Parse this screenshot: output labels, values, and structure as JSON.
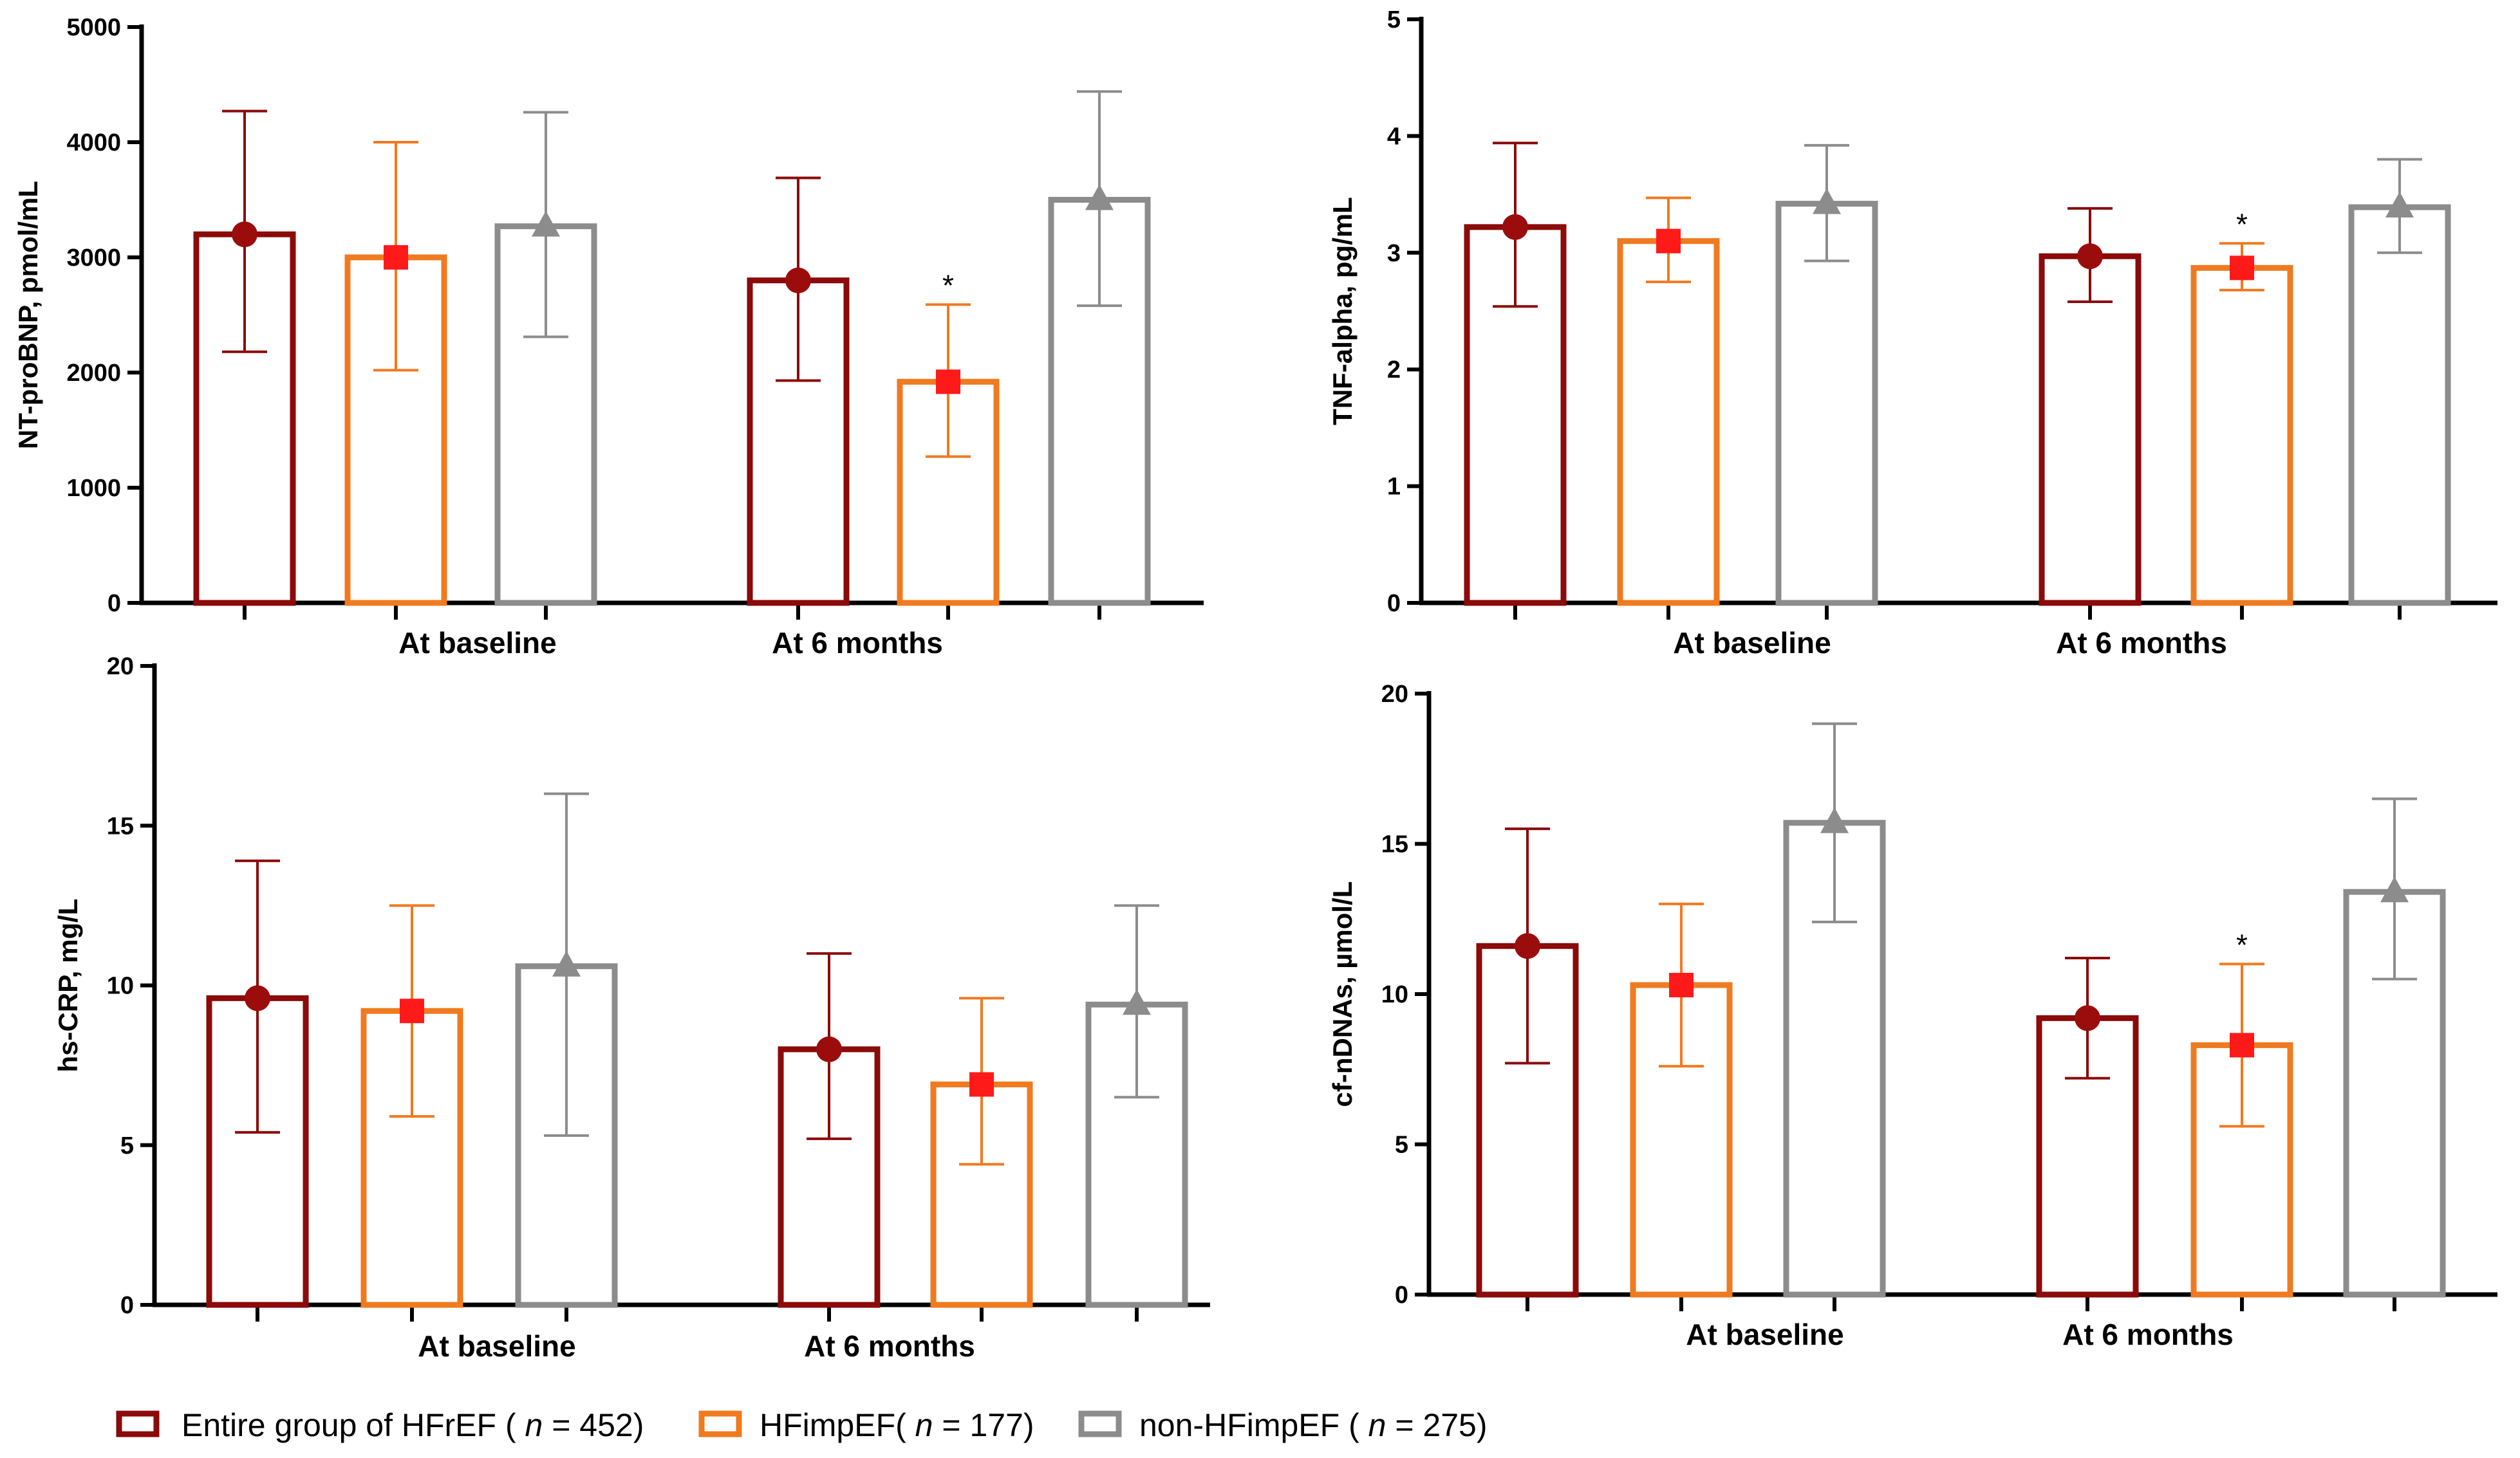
{
  "legend": [
    {
      "key": "entire",
      "prefix": "Entire group of HFrEF ( ",
      "n_label": "n",
      "suffix": " = 452)",
      "color": "#8b0a0a",
      "marker": "circle",
      "marker_color": "#9b0d0d"
    },
    {
      "key": "imp",
      "prefix": "HFimpEF( ",
      "n_label": "n",
      "suffix": " = 177)",
      "color": "#f07a20",
      "marker": "square",
      "marker_color": "#ff1a1a"
    },
    {
      "key": "non",
      "prefix": "non-HFimpEF ( ",
      "n_label": "n",
      "suffix": " = 275)",
      "color": "#8c8c8c",
      "marker": "triangle",
      "marker_color": "#8c8c8c"
    }
  ],
  "chart_data": [
    {
      "type": "bar",
      "ylabel": "NT-proBNP, pmol/mL",
      "ylim": [
        0,
        5000
      ],
      "yticks": [
        0,
        1000,
        2000,
        3000,
        4000,
        5000
      ],
      "categories": [
        "At baseline",
        "At 6 months"
      ],
      "series": [
        {
          "name": "Entire group of HFrEF ( n = 452)",
          "values": [
            3200,
            2800
          ],
          "err_low": [
            2180,
            1930
          ],
          "err_high": [
            4270,
            3690
          ]
        },
        {
          "name": "HFimpEF( n = 177)",
          "values": [
            3000,
            1920
          ],
          "err_low": [
            2020,
            1270
          ],
          "err_high": [
            4000,
            2590
          ]
        },
        {
          "name": "non-HFimpEF ( n = 275)",
          "values": [
            3270,
            3500
          ],
          "err_low": [
            2310,
            2580
          ],
          "err_high": [
            4260,
            4440
          ]
        }
      ],
      "annotations": [
        {
          "text": "*",
          "category": "At 6 months",
          "series": "HFimpEF( n = 177)"
        }
      ]
    },
    {
      "type": "bar",
      "ylabel": "TNF-alpha, pg/mL",
      "ylim": [
        0,
        5
      ],
      "yticks": [
        0,
        1,
        2,
        3,
        4,
        5
      ],
      "categories": [
        "At baseline",
        "At 6 months"
      ],
      "series": [
        {
          "name": "Entire group of HFrEF ( n = 452)",
          "values": [
            3.22,
            2.97
          ],
          "err_low": [
            2.54,
            2.58
          ],
          "err_high": [
            3.94,
            3.38
          ]
        },
        {
          "name": "HFimpEF( n = 177)",
          "values": [
            3.1,
            2.87
          ],
          "err_low": [
            2.75,
            2.68
          ],
          "err_high": [
            3.47,
            3.08
          ]
        },
        {
          "name": "non-HFimpEF ( n = 275)",
          "values": [
            3.42,
            3.39
          ],
          "err_low": [
            2.93,
            3.0
          ],
          "err_high": [
            3.92,
            3.8
          ]
        }
      ],
      "annotations": [
        {
          "text": "*",
          "category": "At 6 months",
          "series": "HFimpEF( n = 177)"
        }
      ]
    },
    {
      "type": "bar",
      "ylabel": "hs-CRP, mg/L",
      "ylim": [
        0,
        20
      ],
      "yticks": [
        0,
        5,
        10,
        15,
        20
      ],
      "categories": [
        "At baseline",
        "At 6 months"
      ],
      "series": [
        {
          "name": "Entire group of HFrEF ( n = 452)",
          "values": [
            9.6,
            8.0
          ],
          "err_low": [
            5.4,
            5.2
          ],
          "err_high": [
            13.9,
            11.0
          ]
        },
        {
          "name": "HFimpEF( n = 177)",
          "values": [
            9.2,
            6.9
          ],
          "err_low": [
            5.9,
            4.4
          ],
          "err_high": [
            12.5,
            9.6
          ]
        },
        {
          "name": "non-HFimpEF ( n = 275)",
          "values": [
            10.6,
            9.4
          ],
          "err_low": [
            5.3,
            6.5
          ],
          "err_high": [
            16.0,
            12.5
          ]
        }
      ],
      "annotations": []
    },
    {
      "type": "bar",
      "ylabel": "cf-nDNAs, µmol/L",
      "ylim": [
        0,
        20
      ],
      "yticks": [
        0,
        5,
        10,
        15,
        20
      ],
      "categories": [
        "At baseline",
        "At 6 months"
      ],
      "series": [
        {
          "name": "Entire group of HFrEF ( n = 452)",
          "values": [
            11.6,
            9.2
          ],
          "err_low": [
            7.7,
            7.2
          ],
          "err_high": [
            15.5,
            11.2
          ]
        },
        {
          "name": "HFimpEF( n = 177)",
          "values": [
            10.3,
            8.3
          ],
          "err_low": [
            7.6,
            5.6
          ],
          "err_high": [
            13.0,
            11.0
          ]
        },
        {
          "name": "non-HFimpEF ( n = 275)",
          "values": [
            15.7,
            13.4
          ],
          "err_low": [
            12.4,
            10.5
          ],
          "err_high": [
            19.0,
            16.5
          ]
        }
      ],
      "annotations": [
        {
          "text": "*",
          "category": "At 6 months",
          "series": "HFimpEF( n = 177)"
        }
      ]
    }
  ]
}
